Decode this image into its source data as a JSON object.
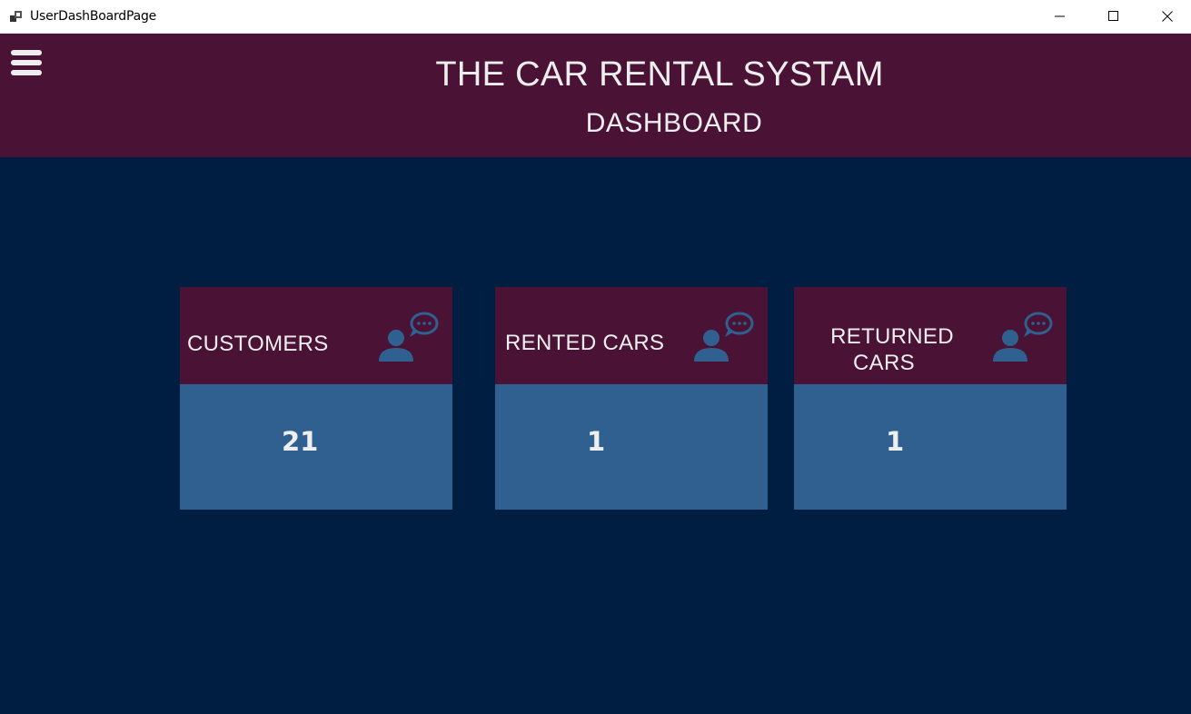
{
  "window": {
    "title": "UserDashBoardPage"
  },
  "header": {
    "app_title": "THE CAR RENTAL SYSTAM",
    "page_title": "DASHBOARD"
  },
  "cards": [
    {
      "label": "CUSTOMERS",
      "value": "21",
      "icon": "user-chat-icon"
    },
    {
      "label": "RENTED CARS",
      "value": "1",
      "icon": "user-chat-icon"
    },
    {
      "label_line1": "RETURNED",
      "label_line2": "CARS",
      "value": "1",
      "icon": "user-chat-icon"
    }
  ],
  "colors": {
    "background": "#001e41",
    "header": "#4a1336",
    "card_header": "#4a1336",
    "card_body": "#2f6090",
    "icon": "#2f6090",
    "text": "#eeeeee"
  }
}
